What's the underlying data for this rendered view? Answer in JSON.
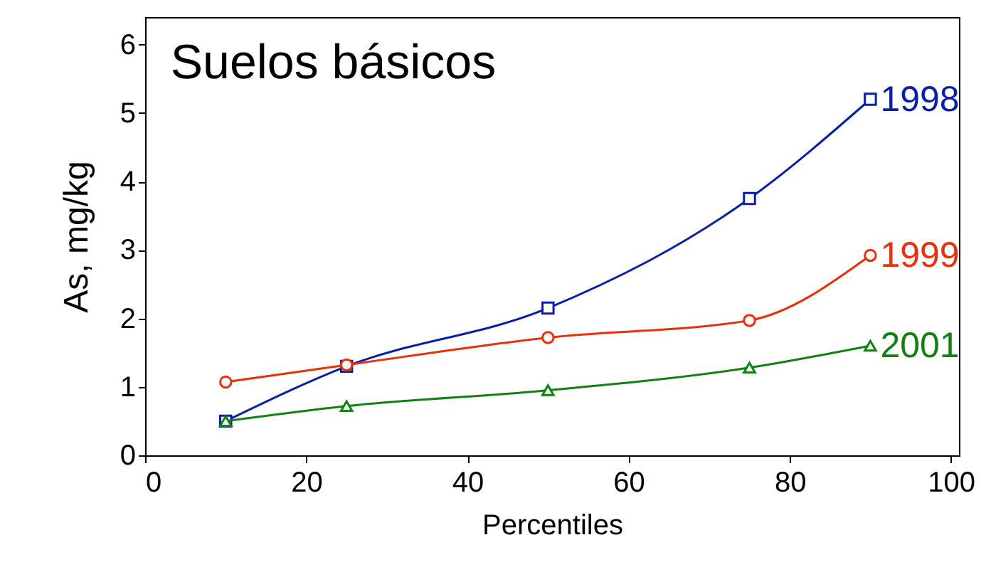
{
  "chart_data": {
    "type": "line",
    "title": "Suelos básicos",
    "xlabel": "Percentiles",
    "ylabel": "As, mg/kg",
    "x": [
      10,
      25,
      50,
      75,
      90
    ],
    "series": [
      {
        "name": "1998",
        "color": "#0a1fa8",
        "marker": "square",
        "values": [
          0.5,
          1.3,
          2.15,
          3.75,
          5.2
        ]
      },
      {
        "name": "1999",
        "color": "#e8300a",
        "marker": "circle",
        "values": [
          1.07,
          1.32,
          1.72,
          1.97,
          2.92
        ]
      },
      {
        "name": "2001",
        "color": "#118211",
        "marker": "triangle",
        "values": [
          0.5,
          0.72,
          0.95,
          1.28,
          1.6
        ]
      }
    ],
    "xlim": [
      0,
      101
    ],
    "xticks": [
      0,
      20,
      40,
      60,
      80,
      100
    ],
    "ylim": [
      0,
      6.4
    ],
    "yticks": [
      0,
      1,
      2,
      3,
      4,
      5,
      6
    ],
    "grid": false
  }
}
